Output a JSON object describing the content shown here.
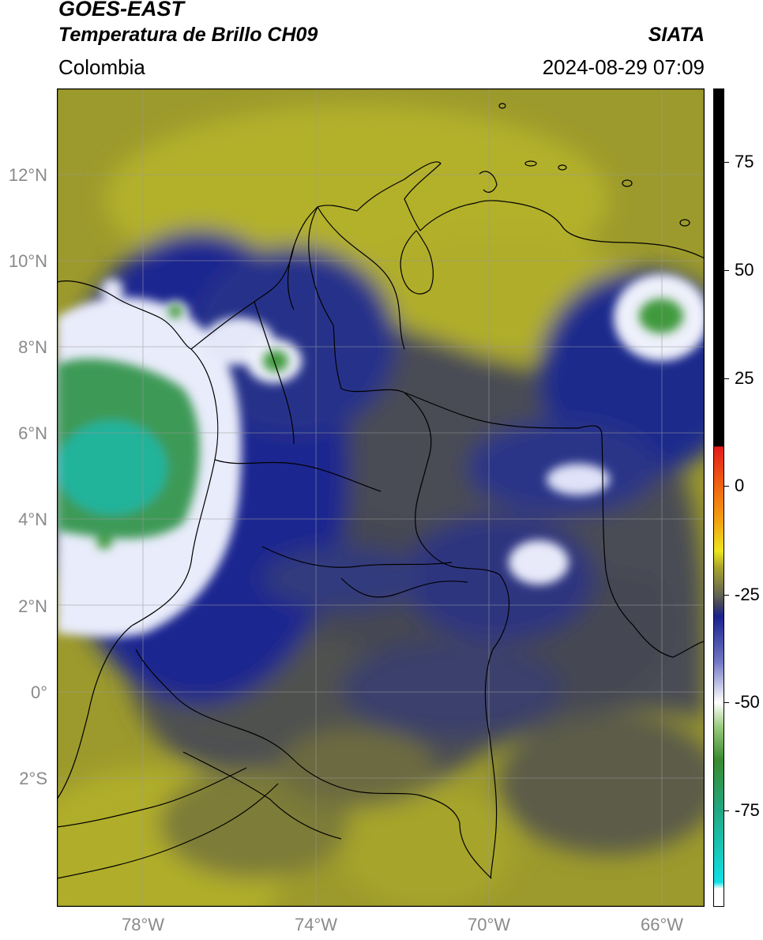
{
  "header": {
    "satellite": "GOES-EAST",
    "product": "Temperatura de Brillo CH09",
    "agency": "SIATA",
    "region": "Colombia",
    "timestamp": "2024-08-29 07:09"
  },
  "map": {
    "lat_labels": [
      "12°N",
      "10°N",
      "8°N",
      "6°N",
      "4°N",
      "2°N",
      "0°",
      "2°S"
    ],
    "lon_labels": [
      "78°W",
      "74°W",
      "70°W",
      "66°W"
    ],
    "extent": {
      "lon_min": -80.0,
      "lon_max": -65.0,
      "lat_min": -5.0,
      "lat_max": 14.0
    },
    "colors": {
      "warm_bg": "#a8a627",
      "mid": "#474a55",
      "cold": "#1d2a8f",
      "white": "#f2f4ff",
      "green": "#2f8f3a",
      "cyan_green": "#22b79d"
    }
  },
  "colorbar": {
    "ticks": [
      "75",
      "50",
      "25",
      "0",
      "-25",
      "-50",
      "-75"
    ],
    "tick_values": [
      75,
      50,
      25,
      0,
      -25,
      -50,
      -75
    ],
    "vmin": -95,
    "vmax": 90
  }
}
